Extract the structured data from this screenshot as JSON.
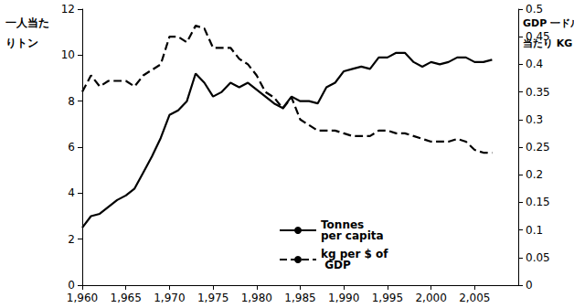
{
  "chart_data": {
    "type": "line",
    "y_label": "一人当た\nりトン",
    "y2_label": "GDP 一ドル\n当たり KG",
    "xlim": [
      1960,
      2010
    ],
    "xticks": [
      1960,
      1965,
      1970,
      1975,
      1980,
      1985,
      1990,
      1995,
      2000,
      2005
    ],
    "ylim": [
      0,
      12
    ],
    "yticks": [
      0,
      2,
      4,
      6,
      8,
      10,
      12
    ],
    "y2lim": [
      0,
      0.5
    ],
    "y2ticks": [
      0,
      0.05,
      0.1,
      0.15,
      0.2,
      0.25,
      0.3,
      0.35,
      0.4,
      0.45,
      0.5
    ],
    "grid": false,
    "legend": "bottom",
    "x": [
      1960,
      1961,
      1962,
      1963,
      1964,
      1965,
      1966,
      1967,
      1968,
      1969,
      1970,
      1971,
      1972,
      1973,
      1974,
      1975,
      1976,
      1977,
      1978,
      1979,
      1980,
      1981,
      1982,
      1983,
      1984,
      1985,
      1986,
      1987,
      1988,
      1989,
      1990,
      1991,
      1992,
      1993,
      1994,
      1995,
      1996,
      1997,
      1998,
      1999,
      2000,
      2001,
      2002,
      2003,
      2004,
      2005,
      2006,
      2007
    ],
    "series": [
      {
        "name": "Tonnes per capita",
        "color": "#000000",
        "line_style": "solid",
        "values": [
          2.5,
          3.0,
          3.1,
          3.4,
          3.7,
          3.9,
          4.2,
          4.9,
          5.6,
          6.4,
          7.4,
          7.6,
          8.0,
          9.2,
          8.8,
          8.2,
          8.4,
          8.8,
          8.6,
          8.8,
          8.5,
          8.2,
          7.9,
          7.7,
          8.2,
          8.0,
          8.0,
          7.9,
          8.6,
          8.8,
          9.3,
          9.4,
          9.5,
          9.4,
          9.9,
          9.9,
          10.1,
          10.1,
          9.7,
          9.5,
          9.7,
          9.6,
          9.7,
          9.9,
          9.9,
          9.7,
          9.7,
          9.8
        ]
      },
      {
        "name": "kg per $ of GDP",
        "color": "#000000",
        "line_style": "dashed",
        "axis": "y2",
        "values": [
          0.35,
          0.38,
          0.36,
          0.37,
          0.37,
          0.37,
          0.36,
          0.38,
          0.39,
          0.4,
          0.45,
          0.45,
          0.44,
          0.47,
          0.465,
          0.43,
          0.43,
          0.43,
          0.41,
          0.4,
          0.38,
          0.35,
          0.34,
          0.32,
          0.34,
          0.3,
          0.29,
          0.28,
          0.28,
          0.28,
          0.275,
          0.27,
          0.27,
          0.27,
          0.28,
          0.28,
          0.275,
          0.275,
          0.27,
          0.265,
          0.26,
          0.26,
          0.26,
          0.265,
          0.26,
          0.245,
          0.24,
          0.24
        ]
      }
    ]
  }
}
